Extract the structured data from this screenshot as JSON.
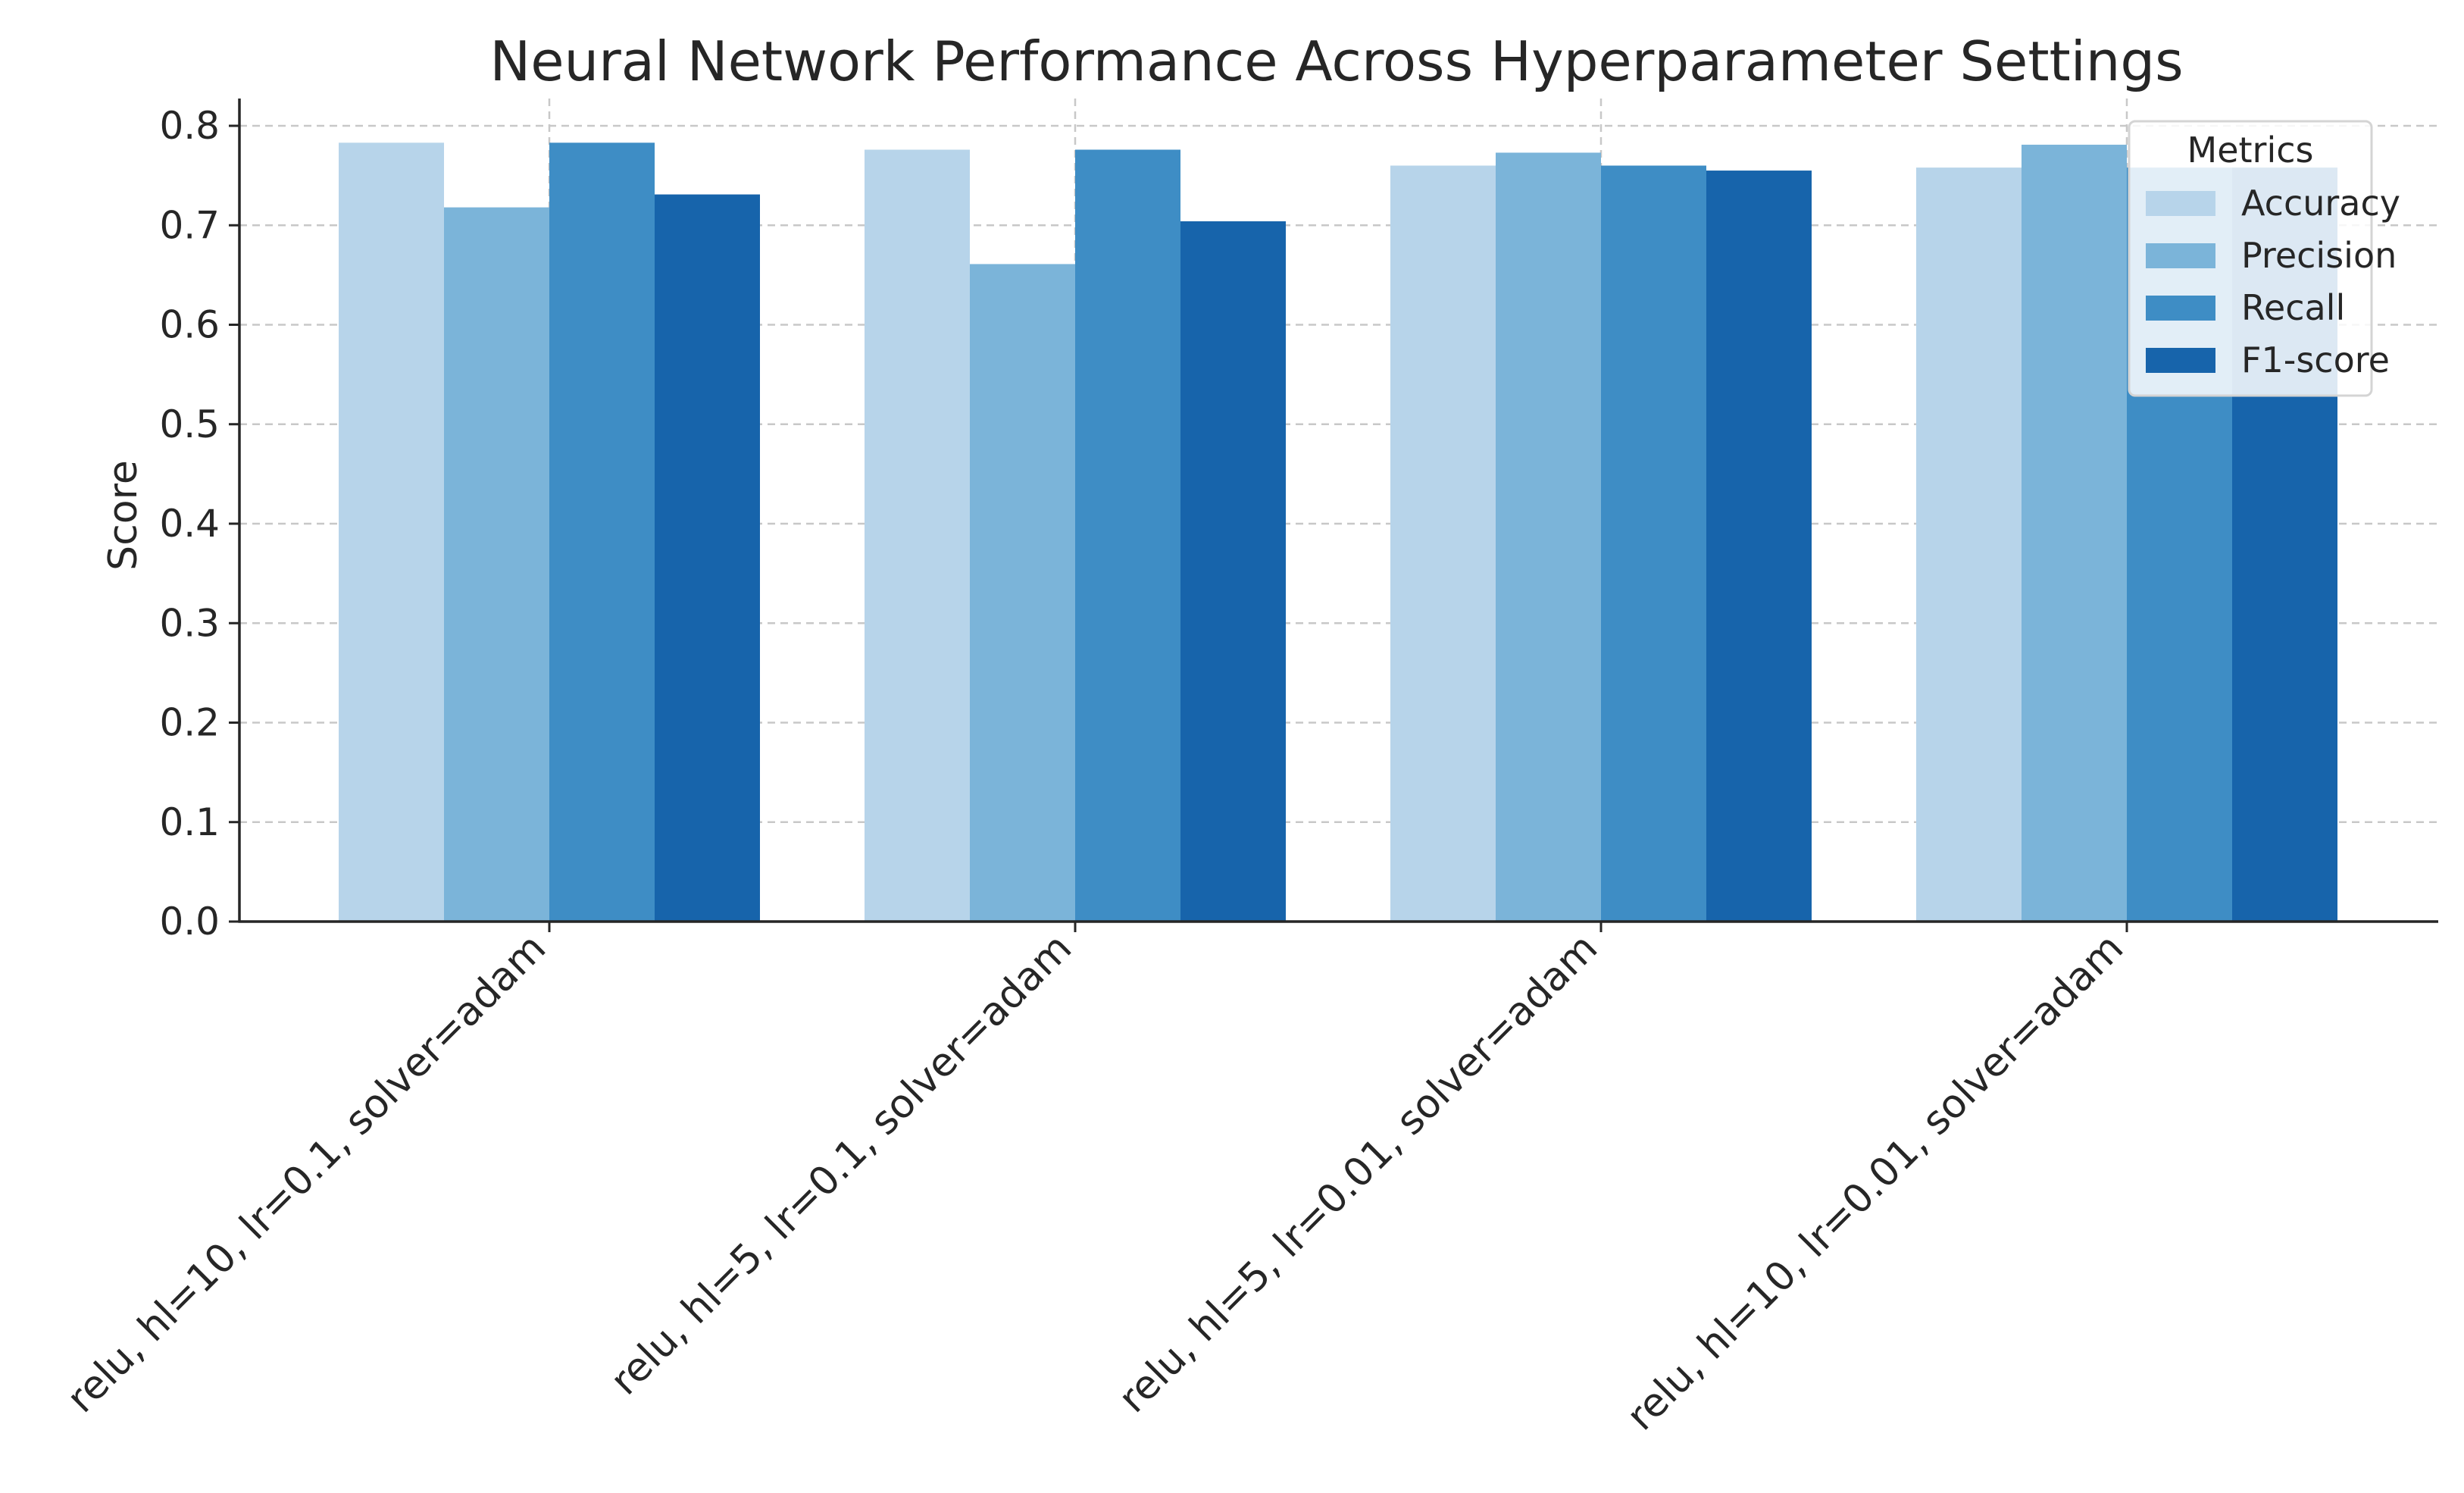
{
  "chart_data": {
    "type": "bar",
    "title": "Neural Network Performance Across Hyperparameter Settings",
    "xlabel": "",
    "ylabel": "Score",
    "ylim": [
      0,
      0.82
    ],
    "yticks": [
      0.0,
      0.1,
      0.2,
      0.3,
      0.4,
      0.5,
      0.6,
      0.7,
      0.8
    ],
    "ytick_labels": [
      "0.0",
      "0.1",
      "0.2",
      "0.3",
      "0.4",
      "0.5",
      "0.6",
      "0.7",
      "0.8"
    ],
    "categories": [
      "relu, hl=10, lr=0.1, solver=adam",
      "relu, hl=5, lr=0.1, solver=adam",
      "relu, hl=5, lr=0.01, solver=adam",
      "relu, hl=10, lr=0.01, solver=adam"
    ],
    "series": [
      {
        "name": "Accuracy",
        "color": "#b7d4ea",
        "values": [
          0.783,
          0.776,
          0.76,
          0.758
        ]
      },
      {
        "name": "Precision",
        "color": "#7bb4d9",
        "values": [
          0.718,
          0.661,
          0.773,
          0.781
        ]
      },
      {
        "name": "Recall",
        "color": "#3e8dc5",
        "values": [
          0.783,
          0.776,
          0.76,
          0.758
        ]
      },
      {
        "name": "F1-score",
        "color": "#1764ab",
        "values": [
          0.731,
          0.704,
          0.755,
          0.758
        ]
      }
    ],
    "grid": true,
    "legend": {
      "title": "Metrics",
      "placement": "top-right"
    }
  }
}
